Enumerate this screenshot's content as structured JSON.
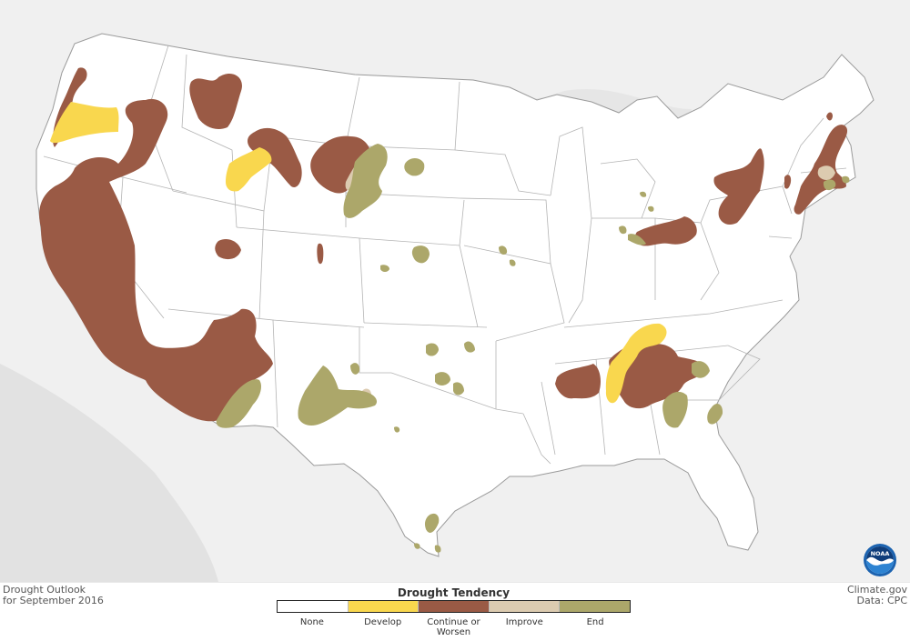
{
  "outlook": {
    "line1": "Drought Outlook",
    "line2": "for September 2016"
  },
  "credit": {
    "line1": "Climate.gov",
    "line2": "Data: CPC"
  },
  "legend": {
    "title": "Drought Tendency",
    "items": [
      {
        "label": "None",
        "color": "#ffffff"
      },
      {
        "label": "Develop",
        "color": "#f9d74e"
      },
      {
        "label": "Continue or\nWorsen",
        "color": "#9a5a45"
      },
      {
        "label": "Improve",
        "color": "#dccbb0"
      },
      {
        "label": "End",
        "color": "#aca76a"
      }
    ]
  },
  "logo": {
    "text": "NOAA"
  }
}
